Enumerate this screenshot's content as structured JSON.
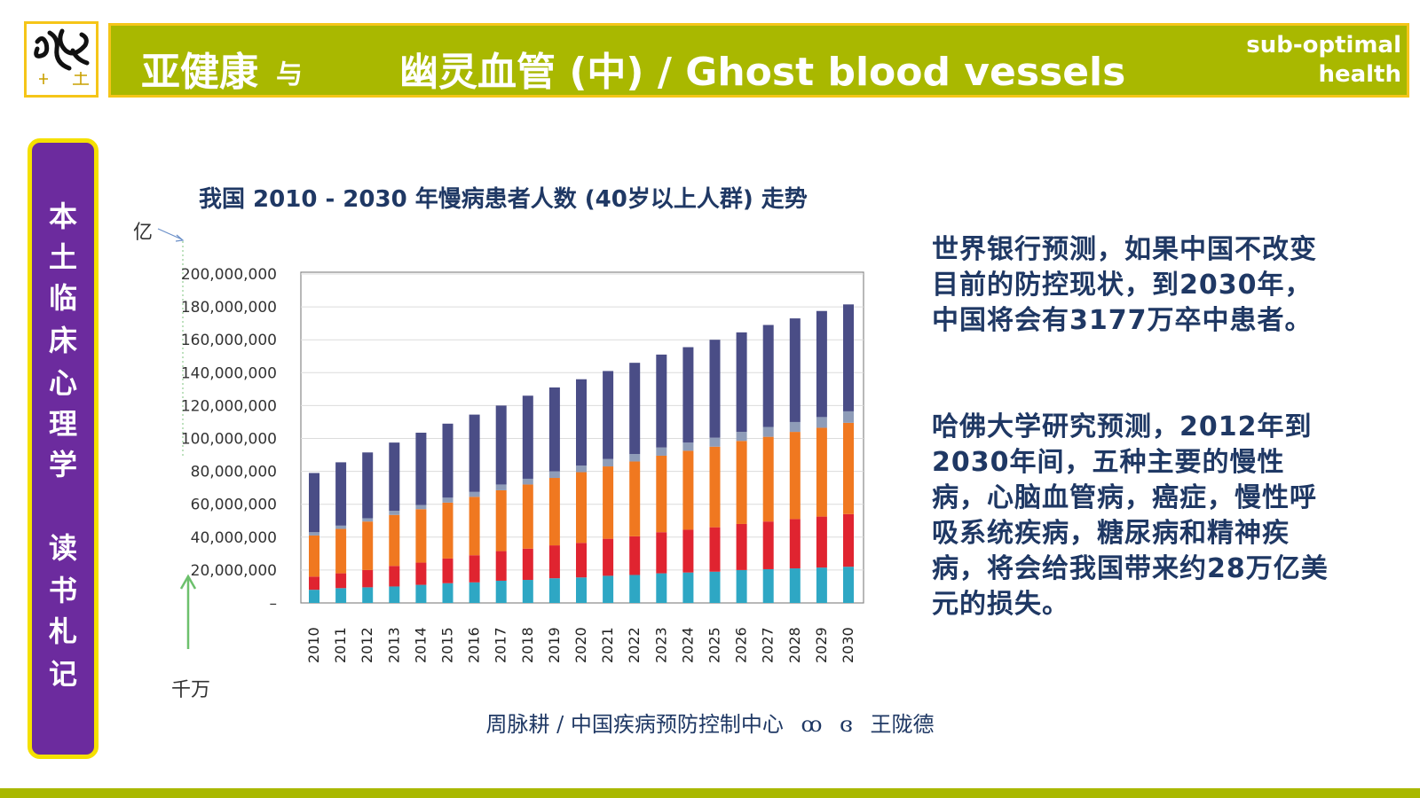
{
  "header": {
    "title_cn": "亚健康",
    "title_conj": "与",
    "title_main": "幽灵血管 (中) / Ghost blood vessels",
    "right_line1": "sub-optimal",
    "right_line2": "health"
  },
  "sidebar": {
    "chars": [
      "本",
      "土",
      "临",
      "床",
      "心",
      "理",
      "学",
      "读",
      "书",
      "札",
      "记"
    ]
  },
  "unit_top": "亿",
  "unit_bottom": "千万",
  "chart_data": {
    "type": "bar",
    "stacked": true,
    "title": "我国 2010 - 2030 年慢病患者人数 (40岁以上人群) 走势",
    "categories": [
      "2010",
      "2011",
      "2012",
      "2013",
      "2014",
      "2015",
      "2016",
      "2017",
      "2018",
      "2019",
      "2020",
      "2021",
      "2022",
      "2023",
      "2024",
      "2025",
      "2026",
      "2027",
      "2028",
      "2029",
      "2030"
    ],
    "series": [
      {
        "name": "teal",
        "color": "#2ea7c4",
        "values": [
          8,
          9,
          9.5,
          10,
          11,
          12,
          12.5,
          13.5,
          14,
          15,
          15.5,
          16.5,
          17,
          18,
          18.5,
          19,
          20,
          20.5,
          21,
          21.5,
          22
        ]
      },
      {
        "name": "red",
        "color": "#e02430",
        "values": [
          8,
          9,
          10.5,
          12.5,
          13.5,
          15,
          16.5,
          18,
          19,
          20,
          21,
          22.5,
          23.5,
          25,
          26,
          27,
          28,
          29,
          30,
          31,
          32
        ]
      },
      {
        "name": "orange",
        "color": "#f07820",
        "values": [
          25,
          27,
          29.5,
          31,
          32.5,
          34,
          35.5,
          37,
          39,
          41,
          43,
          44,
          45.5,
          46.5,
          48,
          49,
          50.5,
          51.5,
          53,
          54,
          55.5
        ]
      },
      {
        "name": "gray",
        "color": "#8e9cb8",
        "values": [
          2,
          2,
          2,
          2.5,
          2.5,
          3,
          3,
          3.5,
          3.5,
          4,
          4,
          4.5,
          4.5,
          5,
          5,
          5.5,
          5.5,
          6,
          6,
          6.5,
          7
        ]
      },
      {
        "name": "navy",
        "color": "#4a4d86",
        "values": [
          36,
          38.5,
          40,
          41.5,
          44,
          45,
          47,
          48,
          50.5,
          51,
          52.5,
          53.5,
          55.5,
          56.5,
          58,
          59.5,
          60.5,
          62,
          63,
          64.5,
          65
        ]
      }
    ],
    "y_tick_labels": [
      "–",
      "20,000,000",
      "40,000,000",
      "60,000,000",
      "80,000,000",
      "100,000,000",
      "120,000,000",
      "140,000,000",
      "160,000,000",
      "180,000,000",
      "200,000,000"
    ],
    "ylim": [
      0,
      200000000
    ],
    "unit_scale": 1000000,
    "grid": true
  },
  "paragraphs": [
    "世界银行预测，如果中国不改变目前的防控现状，到2030年，中国将会有3177万卒中患者。",
    "哈佛大学研究预测，2012年到2030年间，五种主要的慢性病，心脑血管病，癌症，慢性呼吸系统疾病，糖尿病和精神疾病，将会给我国带来约28万亿美元的损失。"
  ],
  "footer": {
    "left": "周脉耕 / 中国疾病预防控制中心",
    "sym1": "ꝏ",
    "sym2": "ɞ",
    "right": "王陇德"
  },
  "colors": {
    "header_bg": "#a9b800",
    "accent_border": "#f5c518",
    "sidebar_bg": "#6c2b9e",
    "text_dark": "#1f3864"
  }
}
